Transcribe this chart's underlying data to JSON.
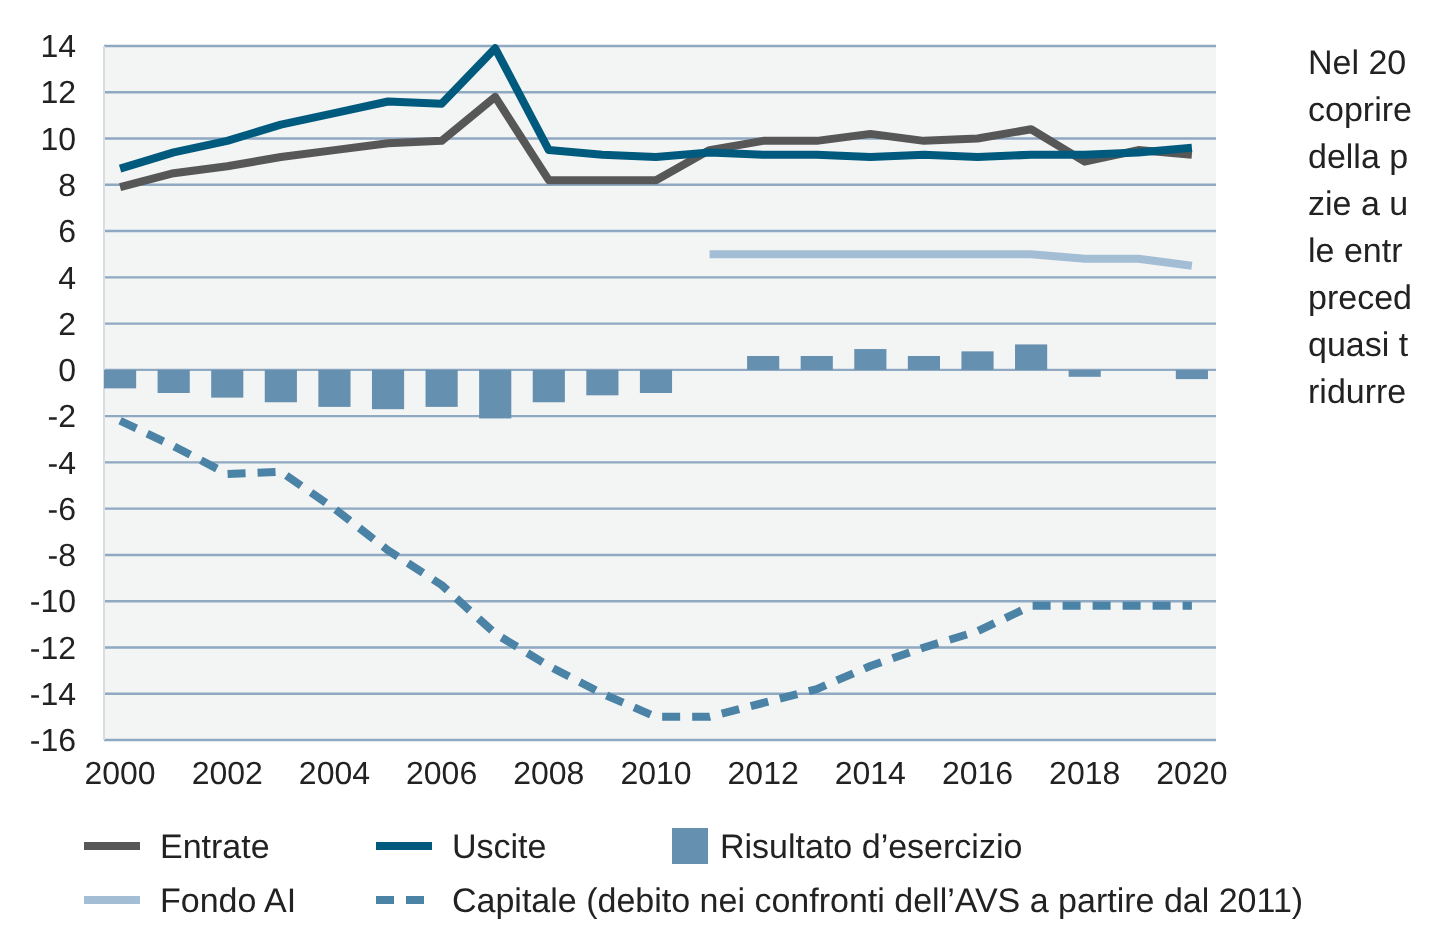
{
  "chart_data": {
    "type": "line",
    "x": [
      2000,
      2001,
      2002,
      2003,
      2004,
      2005,
      2006,
      2007,
      2008,
      2009,
      2010,
      2011,
      2012,
      2013,
      2014,
      2015,
      2016,
      2017,
      2018,
      2019,
      2020
    ],
    "xlim": [
      1999.7,
      2020.45
    ],
    "xticks": [
      2000,
      2002,
      2004,
      2006,
      2008,
      2010,
      2012,
      2014,
      2016,
      2018,
      2020
    ],
    "ylim": [
      -16,
      14
    ],
    "yticks": [
      -16,
      -14,
      -12,
      -10,
      -8,
      -6,
      -4,
      -2,
      0,
      2,
      4,
      6,
      8,
      10,
      12,
      14
    ],
    "grid": "y",
    "legend": "bottom",
    "series": [
      {
        "name": "Entrate",
        "color": "#575757",
        "values": [
          7.9,
          8.5,
          8.8,
          9.2,
          9.5,
          9.8,
          9.9,
          11.8,
          8.2,
          8.2,
          8.2,
          9.5,
          9.9,
          9.9,
          10.2,
          9.9,
          10.0,
          10.4,
          9.0,
          9.5,
          9.3
        ]
      },
      {
        "name": "Uscite",
        "color": "#005a7d",
        "values": [
          8.7,
          9.4,
          9.9,
          10.6,
          11.1,
          11.6,
          11.5,
          13.9,
          9.5,
          9.3,
          9.2,
          9.4,
          9.3,
          9.3,
          9.2,
          9.3,
          9.2,
          9.3,
          9.3,
          9.4,
          9.6
        ]
      },
      {
        "name": "Risultato d’esercizio",
        "type": "bar",
        "color": "#6690b0",
        "values": [
          -0.8,
          -1.0,
          -1.2,
          -1.4,
          -1.6,
          -1.7,
          -1.6,
          -2.1,
          -1.4,
          -1.1,
          -1.0,
          0,
          0.6,
          0.6,
          0.9,
          0.6,
          0.8,
          1.1,
          -0.3,
          0,
          -0.4
        ]
      },
      {
        "name": "Fondo AI",
        "color": "#a3bdd4",
        "values": [
          null,
          null,
          null,
          null,
          null,
          null,
          null,
          null,
          null,
          null,
          null,
          5.0,
          5.0,
          5.0,
          5.0,
          5.0,
          5.0,
          5.0,
          4.8,
          4.8,
          4.5
        ]
      },
      {
        "name": "Capitale (debito nei confronti dell’AVS a partire dal 2011)",
        "line_style": "dashed",
        "color": "#4a83a6",
        "values": [
          -2.2,
          -3.3,
          -4.5,
          -4.4,
          -6.0,
          -7.8,
          -9.3,
          -11.4,
          -12.8,
          -14.0,
          -15.0,
          -15.0,
          -14.4,
          -13.8,
          -12.8,
          -12.0,
          -11.3,
          -10.2,
          -10.2,
          -10.2,
          -10.2
        ]
      }
    ],
    "annotations": [
      "Nel 20",
      "coprire",
      "della p",
      "zie a u",
      "le entr",
      "preced",
      "quasi t",
      "ridurre"
    ]
  }
}
